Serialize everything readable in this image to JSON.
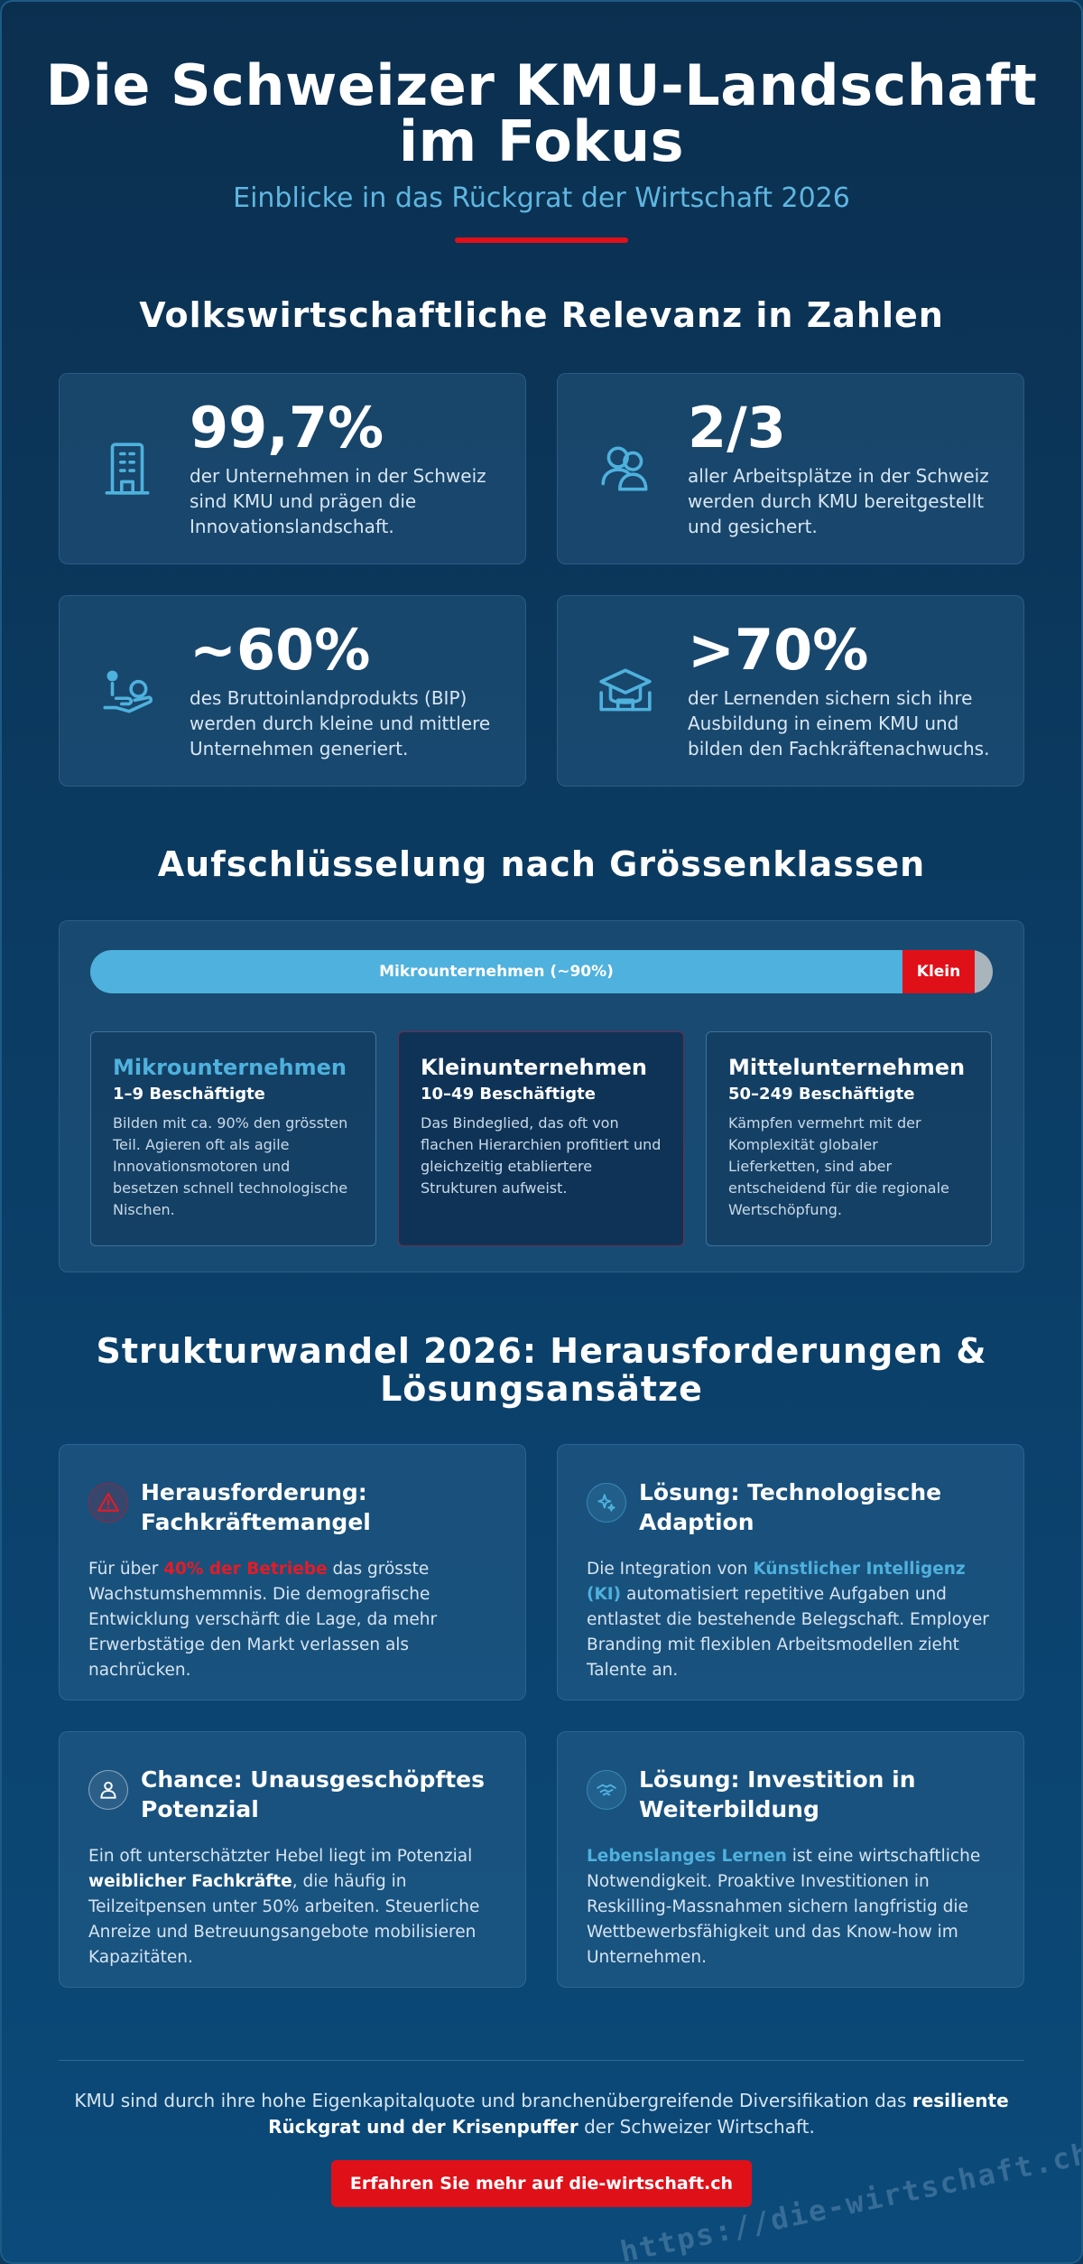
{
  "header": {
    "title": "Die Schweizer KMU-Landschaft im Fokus",
    "subtitle": "Einblicke in das Rückgrat der Wirtschaft 2026"
  },
  "relevance": {
    "title": "Volkswirtschaftliche Relevanz in Zahlen",
    "stats": [
      {
        "icon": "building-icon",
        "value": "99,7%",
        "text": "der Unternehmen in der Schweiz sind KMU und prägen die Innovationslandschaft."
      },
      {
        "icon": "people-icon",
        "value": "2/3",
        "text": "aller Arbeitsplätze in der Schweiz werden durch KMU bereitgestellt und gesichert."
      },
      {
        "icon": "hand-coin-icon",
        "value": "~60%",
        "text": "des Bruttoinlandprodukts (BIP) werden durch kleine und mittlere Unternehmen generiert."
      },
      {
        "icon": "graduation-cap-icon",
        "value": ">70%",
        "text": "der Lernenden sichern sich ihre Ausbildung in einem KMU und bilden den Fachkräftenachwuchs."
      }
    ]
  },
  "sizes": {
    "title": "Aufschlüsselung nach Grössenklassen",
    "bar": {
      "micro_label": "Mikrounternehmen (~90%)",
      "small_label": "Klein",
      "micro_share": 0.9,
      "small_share": 0.08,
      "medium_share": 0.02
    },
    "classes": [
      {
        "name": "Mikrounternehmen",
        "range": "1–9 Beschäftigte",
        "desc": "Bilden mit ca. 90% den grössten Teil. Agieren oft als agile Innovationsmotoren und besetzen schnell technologische Nischen."
      },
      {
        "name": "Kleinunternehmen",
        "range": "10–49 Beschäftigte",
        "desc": "Das Bindeglied, das oft von flachen Hierarchien profitiert und gleichzeitig etabliertere Strukturen aufweist."
      },
      {
        "name": "Mittelunternehmen",
        "range": "50–249 Beschäftigte",
        "desc": "Kämpfen vermehrt mit der Komplexität globaler Lieferketten, sind aber entscheidend für die regionale Wertschöpfung."
      }
    ],
    "colors": {
      "micro": "#4fb1dd",
      "small": "#e01019",
      "medium": "#a9b4bd"
    }
  },
  "change": {
    "title": "Strukturwandel 2026: Herausforderungen & Lösungsansätze",
    "cards": [
      {
        "icon": "warning-icon",
        "title": "Herausforderung: Fachkräftemangel",
        "p1": "Für über ",
        "hl": "40% der Betriebe",
        "p2": " das grösste Wachstumshemmnis. Die demografische Entwicklung verschärft die Lage, da mehr Erwerbstätige den Markt verlassen als nachrücken."
      },
      {
        "icon": "sparkle-icon",
        "title": "Lösung: Technologische Adaption",
        "p1": "Die Integration von ",
        "hl": "Künstlicher Intelligenz (KI)",
        "p2": " automatisiert repetitive Aufgaben und entlastet die bestehende Belegschaft. Employer Branding mit flexiblen Arbeitsmodellen zieht Talente an."
      },
      {
        "icon": "person-icon",
        "title": "Chance: Unausgeschöpftes Potenzial",
        "p1": "Ein oft unterschätzter Hebel liegt im Potenzial ",
        "hl": "weiblicher Fachkräfte",
        "p2": ", die häufig in Teilzeitpensen unter 50% arbeiten. Steuerliche Anreize und Betreuungsangebote mobilisieren Kapazitäten."
      },
      {
        "icon": "handshake-icon",
        "title": "Lösung: Investition in Weiterbildung",
        "p1": "",
        "hl": "Lebenslanges Lernen",
        "p2": " ist eine wirtschaftliche Notwendigkeit. Proaktive Investitionen in Reskilling-Massnahmen sichern langfristig die Wettbewerbsfähigkeit und das Know-how im Unternehmen."
      }
    ]
  },
  "footer": {
    "text_before": "KMU sind durch ihre hohe Eigenkapitalquote und branchenübergreifende Diversifikation das ",
    "text_bold": "resiliente Rückgrat und der Krisenpuffer",
    "text_after": " der Schweizer Wirtschaft.",
    "cta": "Erfahren Sie mehr auf die-wirtschaft.ch",
    "watermark": "https://die-wirtschaft.ch"
  }
}
